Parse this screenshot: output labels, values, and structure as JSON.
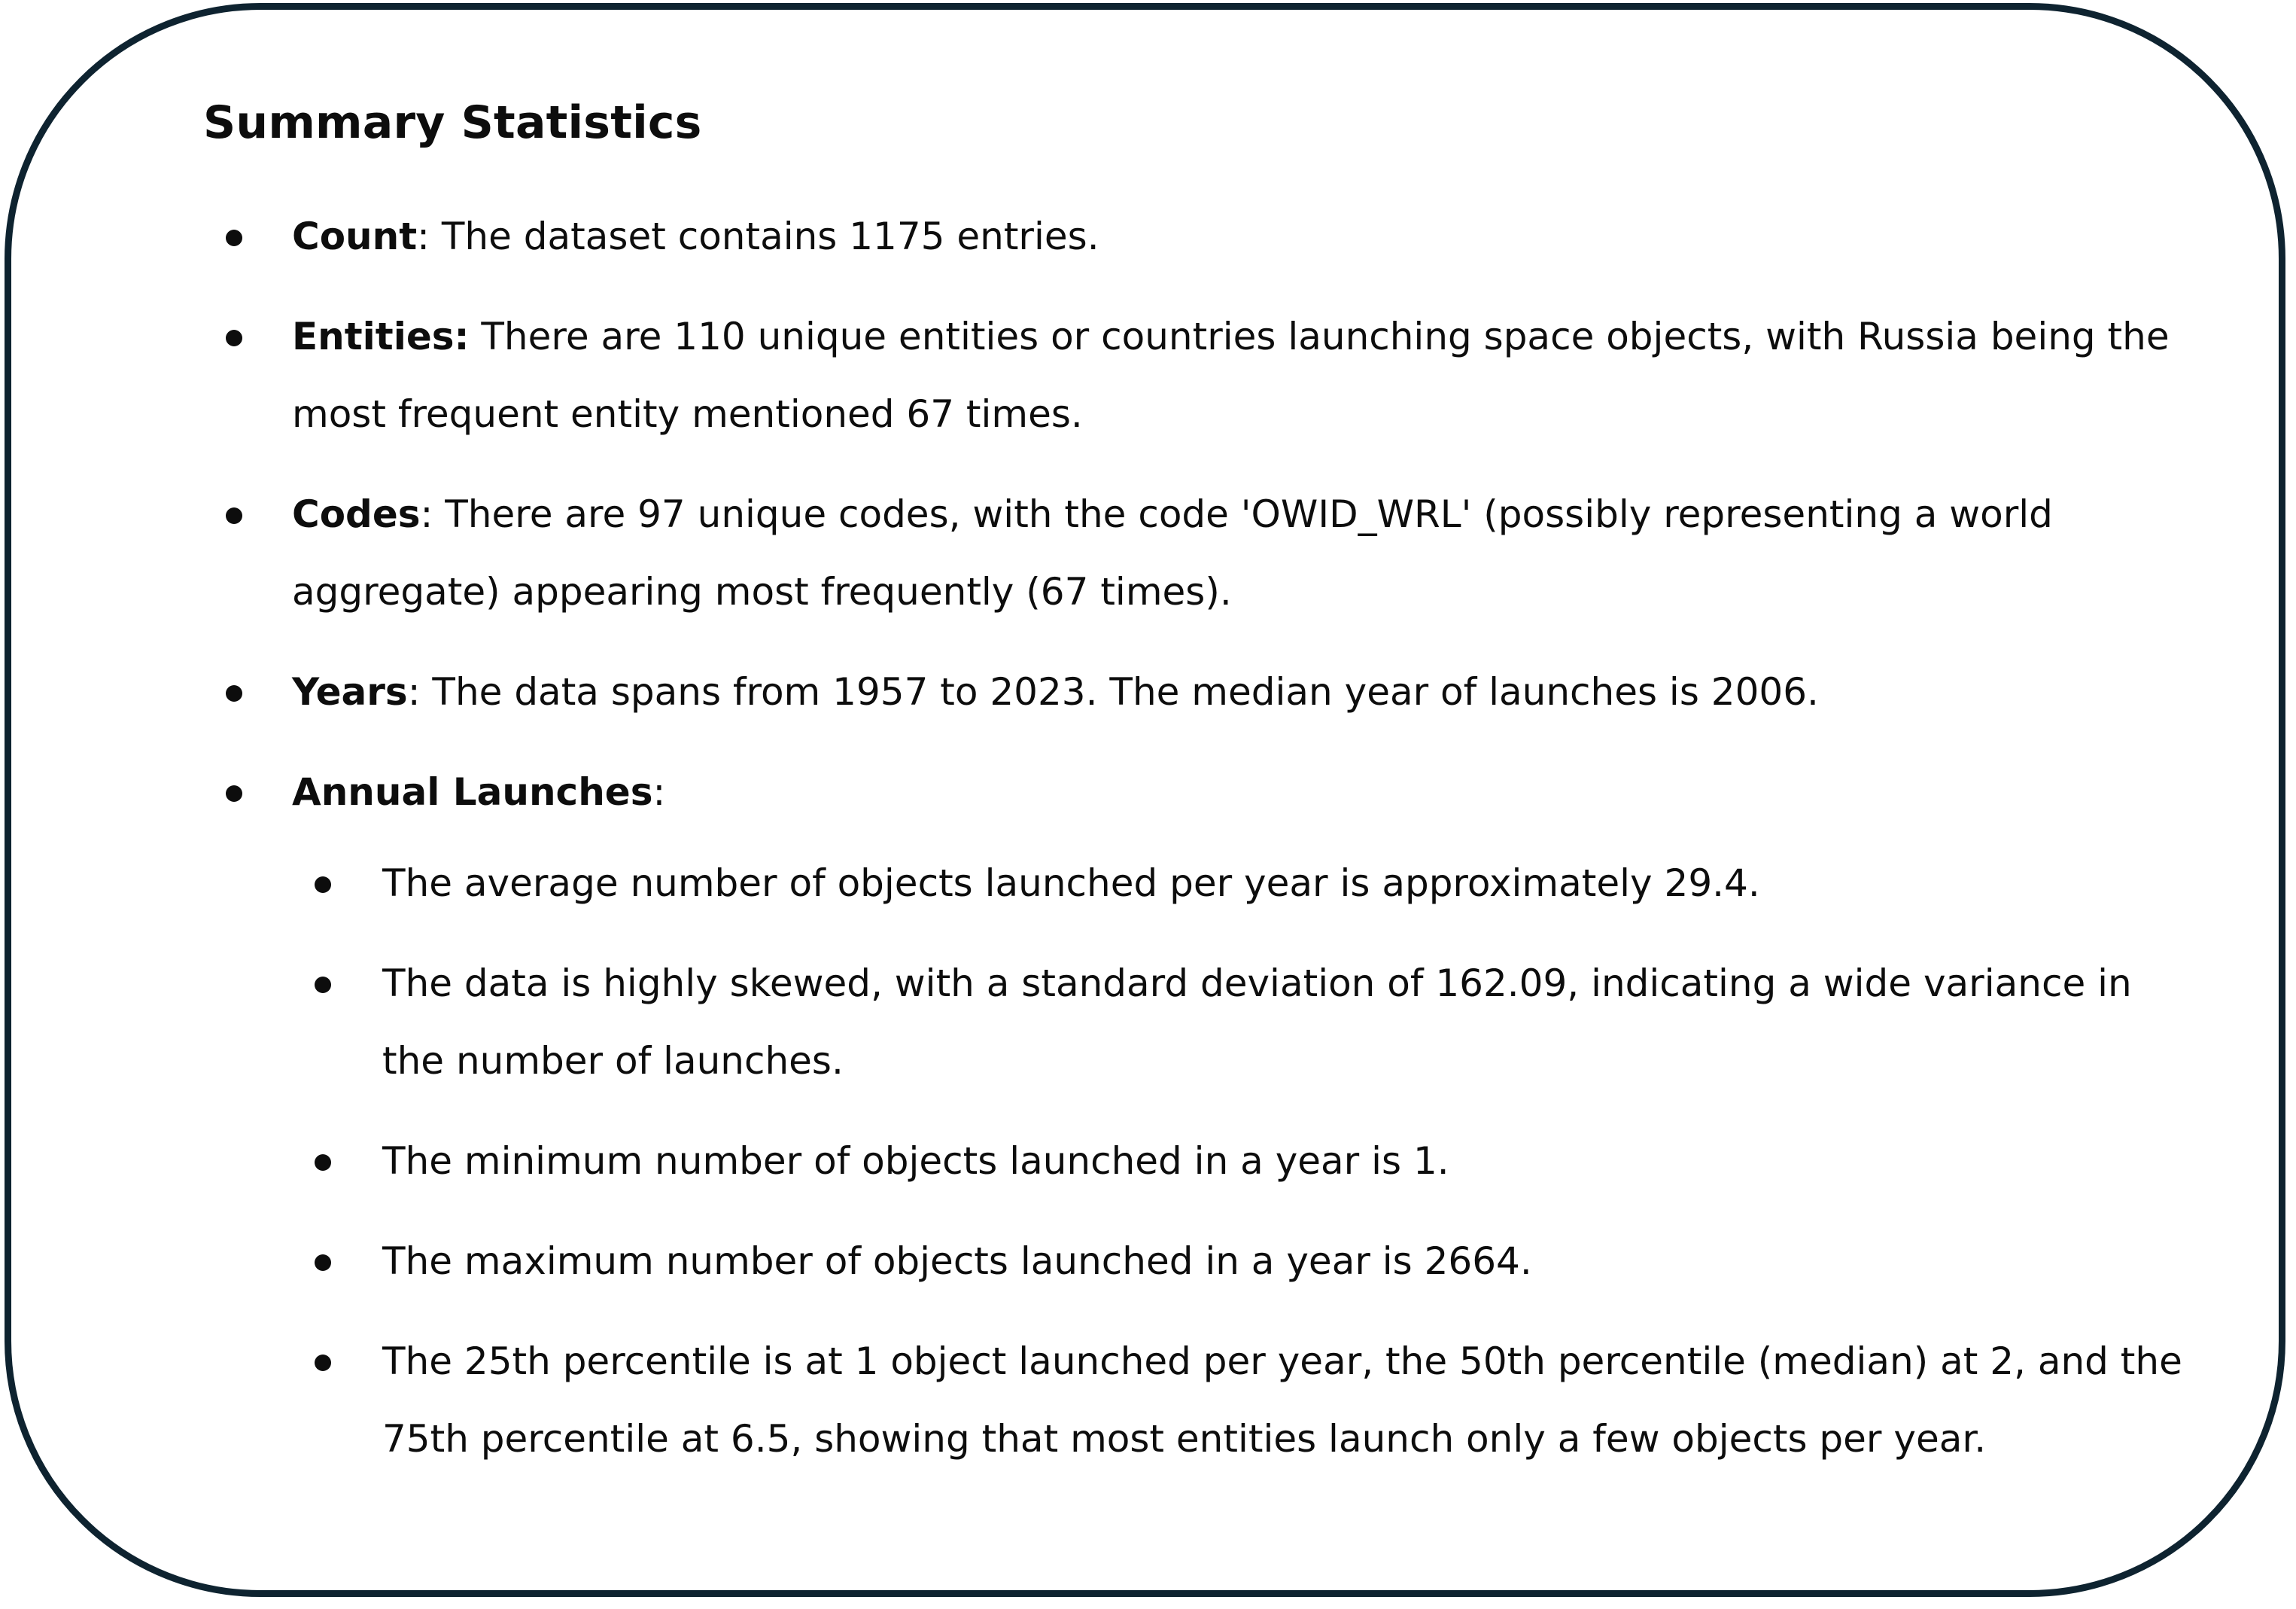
{
  "title": "Summary Statistics",
  "items": [
    {
      "label": "Count",
      "text": ": The dataset contains 1175 entries."
    },
    {
      "label": "Entities:",
      "text": " There are 110 unique entities or countries launching space objects, with Russia being the most frequent entity mentioned 67 times."
    },
    {
      "label": "Codes",
      "text": ": There are 97 unique codes, with the code 'OWID_WRL' (possibly representing a world aggregate) appearing most frequently (67 times)."
    },
    {
      "label": "Years",
      "text": ": The data spans from 1957 to 2023. The median year of launches is 2006."
    },
    {
      "label": "Annual Launches",
      "text": ":"
    }
  ],
  "annual_launches": [
    "The average number of objects launched per year is approximately 29.4.",
    "The data is highly skewed, with a standard deviation of 162.09, indicating a wide variance in the number of launches.",
    "The minimum number of objects launched in a year is 1.",
    "The maximum number of objects launched in a year is 2664.",
    "The 25th percentile is at 1 object launched per year, the 50th percentile (median) at 2, and the 75th percentile at 6.5, showing that most entities launch only a few objects per year."
  ]
}
